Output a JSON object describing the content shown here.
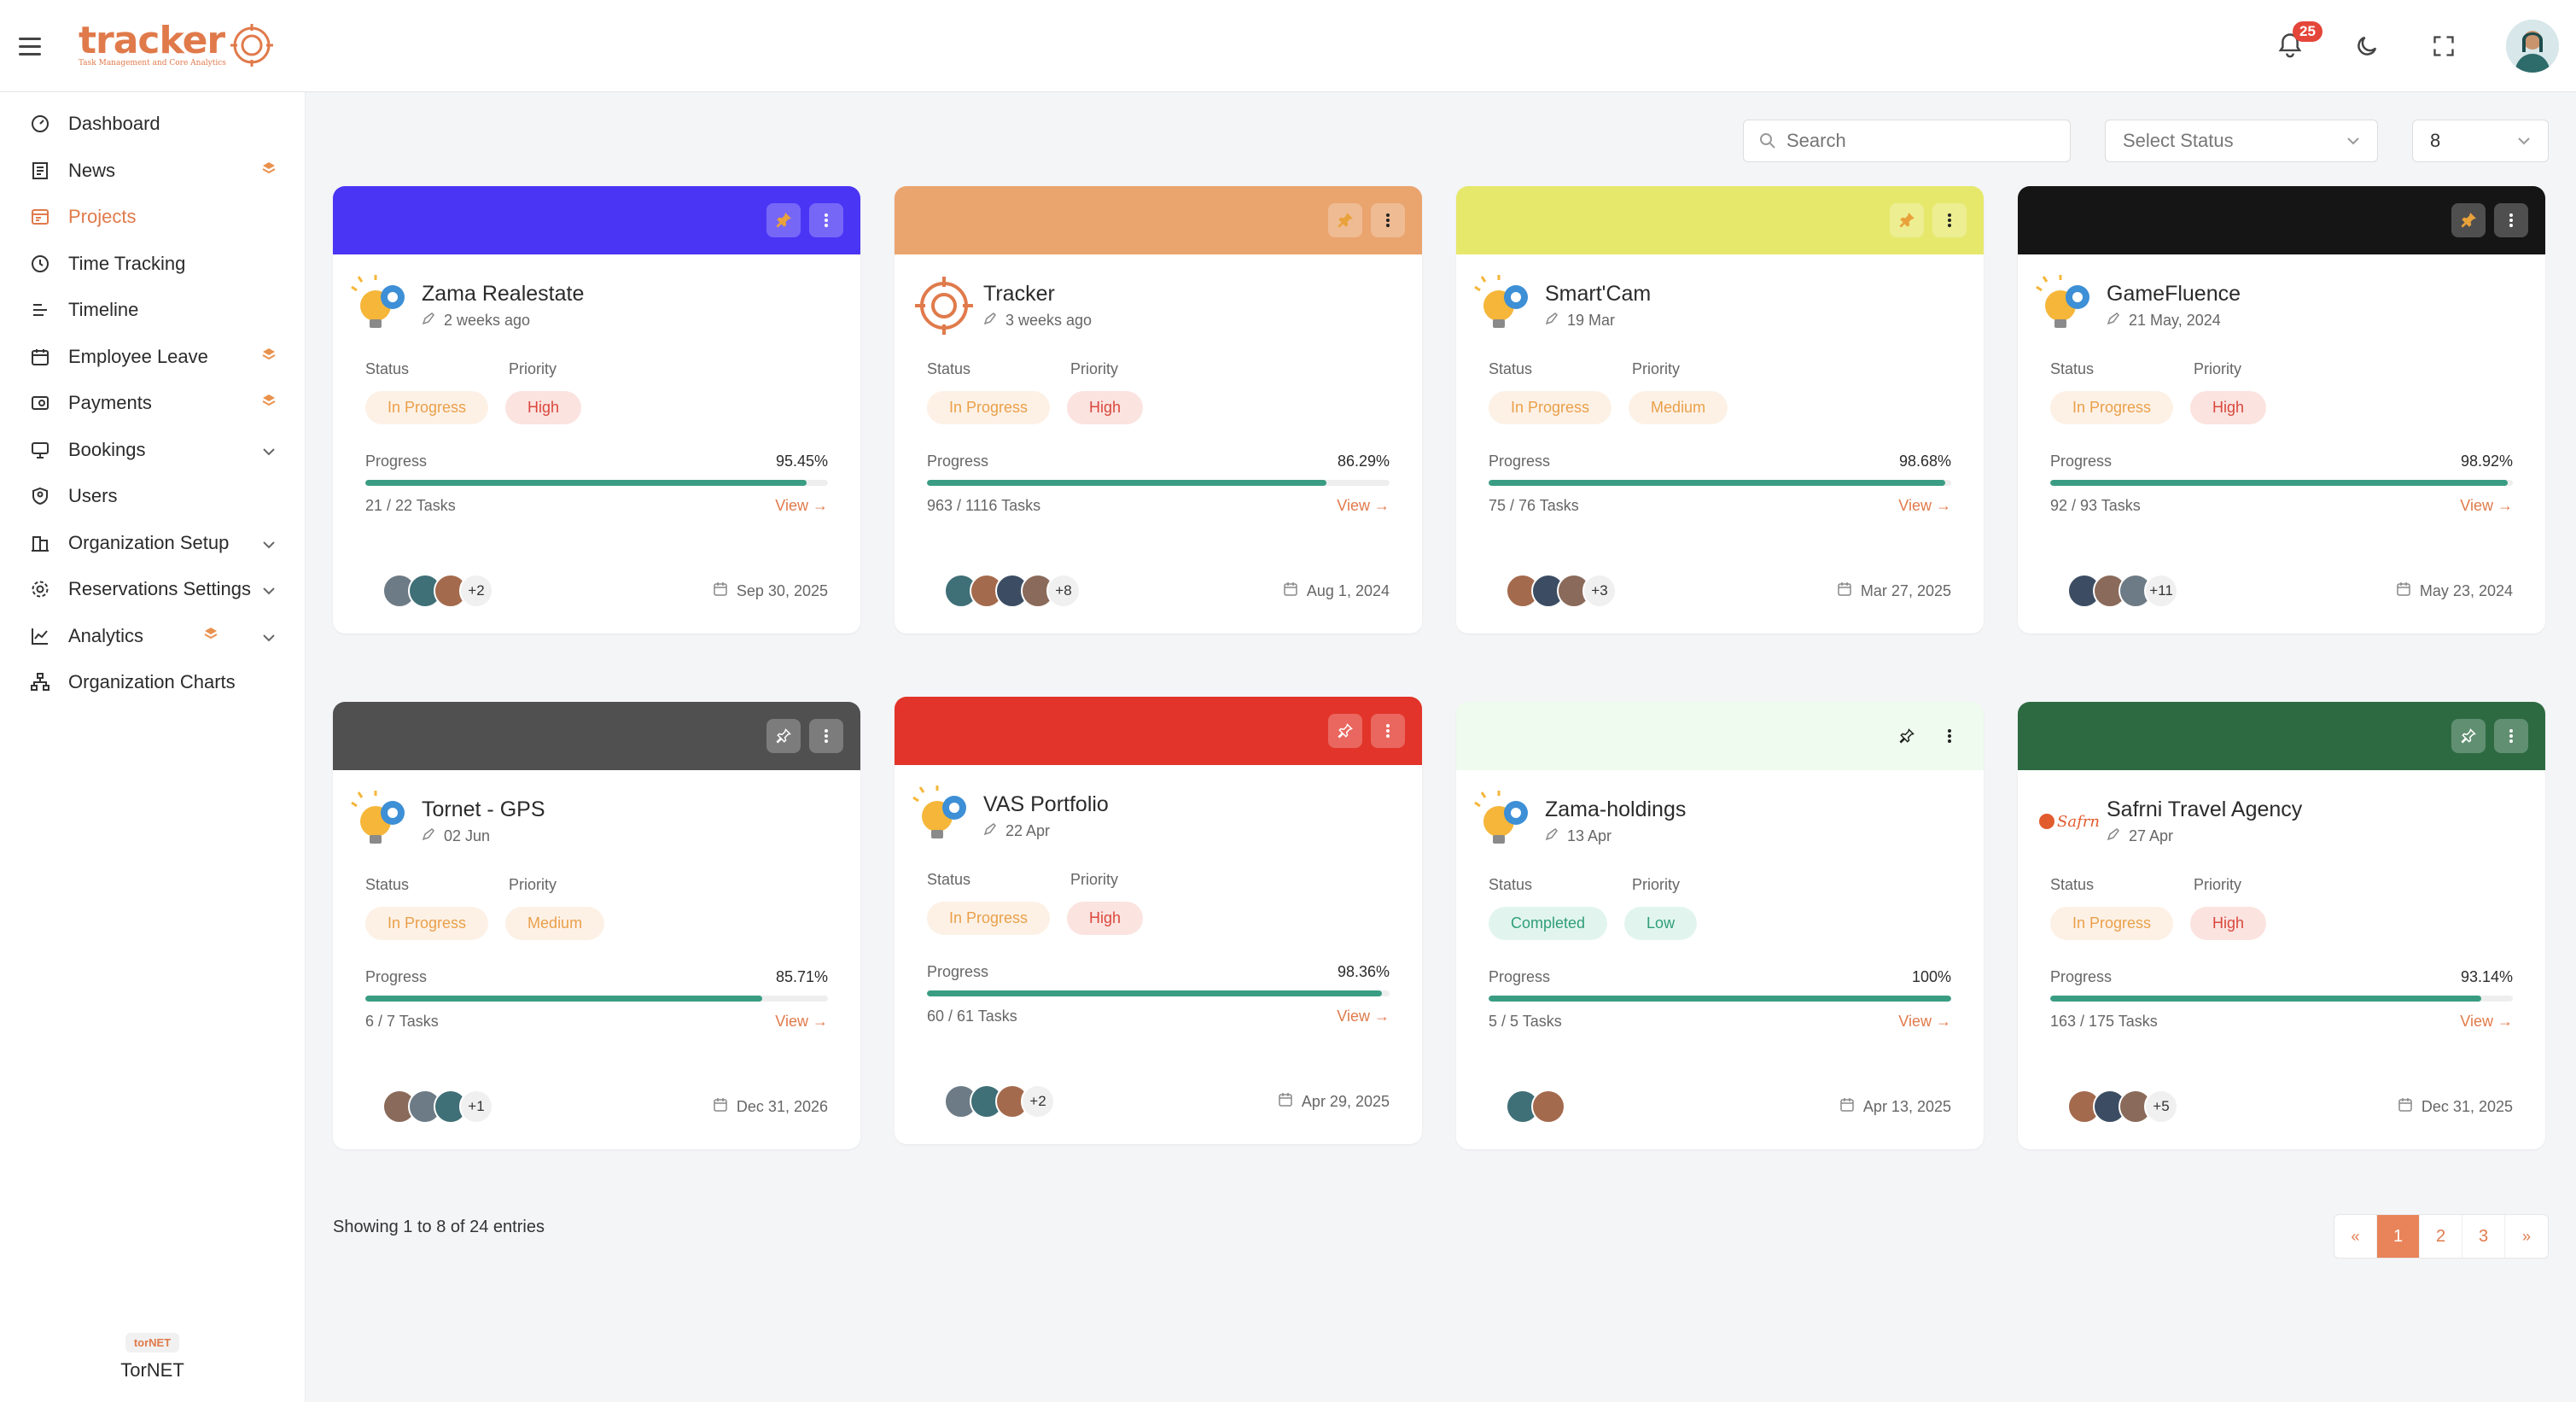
{
  "header": {
    "logo_text": "tracker",
    "logo_subtitle": "Task Management and Core Analytics",
    "notification_count": "25"
  },
  "sidebar": {
    "items": [
      {
        "label": "Dashboard",
        "icon": "dashboard-icon"
      },
      {
        "label": "News",
        "icon": "news-icon",
        "flag": true
      },
      {
        "label": "Projects",
        "icon": "projects-icon",
        "active": true
      },
      {
        "label": "Time Tracking",
        "icon": "clock-icon"
      },
      {
        "label": "Timeline",
        "icon": "timeline-icon"
      },
      {
        "label": "Employee Leave",
        "icon": "calendar-icon",
        "flag": true
      },
      {
        "label": "Payments",
        "icon": "payments-icon",
        "flag": true
      },
      {
        "label": "Bookings",
        "icon": "bookings-icon",
        "chevron": true
      },
      {
        "label": "Users",
        "icon": "users-icon"
      },
      {
        "label": "Organization Setup",
        "icon": "org-setup-icon",
        "chevron": true
      },
      {
        "label": "Reservations Settings",
        "icon": "gear-icon",
        "chevron": true
      },
      {
        "label": "Analytics",
        "icon": "analytics-icon",
        "flag": true,
        "chevron": true
      },
      {
        "label": "Organization Charts",
        "icon": "org-chart-icon"
      }
    ],
    "footer_logo": "torNET",
    "footer_name": "TorNET"
  },
  "filters": {
    "search_placeholder": "Search",
    "status_placeholder": "Select Status",
    "per_page": "8"
  },
  "labels": {
    "status": "Status",
    "priority": "Priority",
    "progress": "Progress",
    "view": "View →"
  },
  "projects": [
    {
      "title": "Zama Realestate",
      "date": "2 weeks ago",
      "status": "In Progress",
      "priority": "High",
      "progress_pct": "95.45%",
      "progress": 95.45,
      "tasks": "21 / 22 Tasks",
      "extra": "+2",
      "due": "Sep 30, 2025",
      "color": "#4a35f5",
      "avatars": 3
    },
    {
      "title": "Tracker",
      "date": "3 weeks ago",
      "status": "In Progress",
      "priority": "High",
      "progress_pct": "86.29%",
      "progress": 86.29,
      "tasks": "963 / 1116 Tasks",
      "extra": "+8",
      "due": "Aug 1, 2024",
      "color": "#eaa46e",
      "avatars": 4
    },
    {
      "title": "Smart'Cam",
      "date": "19 Mar",
      "status": "In Progress",
      "priority": "Medium",
      "progress_pct": "98.68%",
      "progress": 98.68,
      "tasks": "75 / 76 Tasks",
      "extra": "+3",
      "due": "Mar 27, 2025",
      "color": "#e6e86c",
      "avatars": 3
    },
    {
      "title": "GameFluence",
      "date": "21 May, 2024",
      "status": "In Progress",
      "priority": "High",
      "progress_pct": "98.92%",
      "progress": 98.92,
      "tasks": "92 / 93 Tasks",
      "extra": "+11",
      "due": "May 23, 2024",
      "color": "#151515",
      "avatars": 3
    },
    {
      "title": "Tornet - GPS",
      "date": "02 Jun",
      "status": "In Progress",
      "priority": "Medium",
      "progress_pct": "85.71%",
      "progress": 85.71,
      "tasks": "6 / 7 Tasks",
      "extra": "+1",
      "due": "Dec 31, 2026",
      "color": "#505050",
      "avatars": 3
    },
    {
      "title": "VAS Portfolio",
      "date": "22 Apr",
      "status": "In Progress",
      "priority": "High",
      "progress_pct": "98.36%",
      "progress": 98.36,
      "tasks": "60 / 61 Tasks",
      "extra": "+2",
      "due": "Apr 29, 2025",
      "color": "#e2342a",
      "avatars": 3
    },
    {
      "title": "Zama-holdings",
      "date": "13 Apr",
      "status": "Completed",
      "priority": "Low",
      "progress_pct": "100%",
      "progress": 100,
      "tasks": "5 / 5 Tasks",
      "extra": "",
      "due": "Apr 13, 2025",
      "color": "#eefbee",
      "avatars": 2
    },
    {
      "title": "Safrni Travel Agency",
      "date": "27 Apr",
      "status": "In Progress",
      "priority": "High",
      "progress_pct": "93.14%",
      "progress": 93.14,
      "tasks": "163 / 175 Tasks",
      "extra": "+5",
      "due": "Dec 31, 2025",
      "color": "#2d6a42",
      "avatars": 3
    }
  ],
  "entries_text": "Showing 1 to 8 of 24 entries",
  "pagination": [
    "«",
    "1",
    "2",
    "3",
    "»"
  ],
  "colors": {
    "accent": "#e07a4b",
    "progress": "#3a9d83"
  }
}
